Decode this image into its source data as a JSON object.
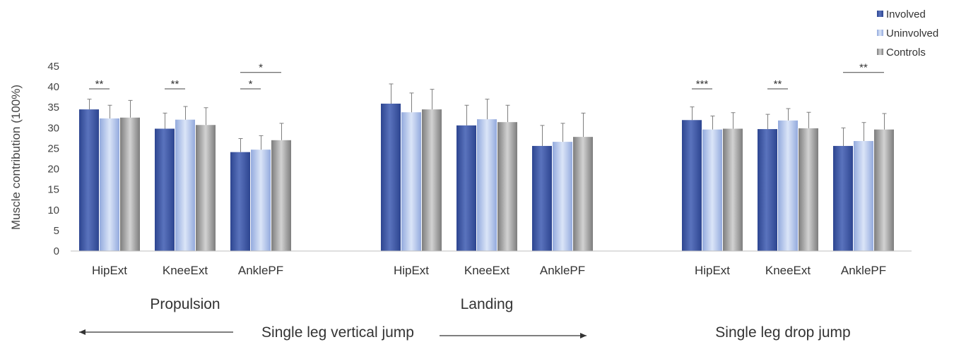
{
  "chart_data": {
    "type": "bar",
    "ylabel": "Muscle contribution (100%)",
    "ylim": [
      0,
      45
    ],
    "yticks": [
      0,
      5,
      10,
      15,
      20,
      25,
      30,
      35,
      40,
      45
    ],
    "grid": false,
    "legend_position": "top-right",
    "series": [
      {
        "name": "Involved",
        "color": "#3c559f"
      },
      {
        "name": "Uninvolved",
        "color": "#a9bde6"
      },
      {
        "name": "Controls",
        "color": "#999999"
      }
    ],
    "groups": [
      {
        "label": "Propulsion",
        "categories": [
          {
            "label": "HipExt",
            "values": [
              34.5,
              32.3,
              32.5
            ],
            "errors": [
              2.5,
              3.2,
              4.2
            ]
          },
          {
            "label": "KneeExt",
            "values": [
              29.8,
              32.0,
              30.7
            ],
            "errors": [
              3.8,
              3.2,
              4.2
            ]
          },
          {
            "label": "AnklePF",
            "values": [
              24.1,
              24.7,
              27.0
            ],
            "errors": [
              3.3,
              3.4,
              4.1
            ]
          }
        ]
      },
      {
        "label": "Landing",
        "categories": [
          {
            "label": "HipExt",
            "values": [
              35.9,
              33.8,
              34.5
            ],
            "errors": [
              4.8,
              4.7,
              4.9
            ]
          },
          {
            "label": "KneeExt",
            "values": [
              30.6,
              32.1,
              31.4
            ],
            "errors": [
              4.9,
              4.9,
              4.1
            ]
          },
          {
            "label": "AnklePF",
            "values": [
              25.6,
              26.6,
              27.8
            ],
            "errors": [
              5.0,
              4.5,
              5.8
            ]
          }
        ]
      },
      {
        "label": "",
        "categories": [
          {
            "label": "HipExt",
            "values": [
              31.9,
              29.6,
              29.8
            ],
            "errors": [
              3.2,
              3.3,
              3.9
            ]
          },
          {
            "label": "KneeExt",
            "values": [
              29.7,
              31.8,
              29.9
            ],
            "errors": [
              3.6,
              2.9,
              3.9
            ]
          },
          {
            "label": "AnklePF",
            "values": [
              25.6,
              26.8,
              29.6
            ],
            "errors": [
              4.4,
              4.5,
              3.9
            ]
          }
        ]
      }
    ],
    "significance": [
      {
        "group": 0,
        "category": 0,
        "from": 0,
        "to": 1,
        "y": 39.5,
        "label": "**"
      },
      {
        "group": 0,
        "category": 1,
        "from": 0,
        "to": 1,
        "y": 39.5,
        "label": "**"
      },
      {
        "group": 0,
        "category": 2,
        "from": 0,
        "to": 2,
        "y": 43.5,
        "label": "*"
      },
      {
        "group": 0,
        "category": 2,
        "from": 0,
        "to": 1,
        "y": 39.5,
        "label": "*"
      },
      {
        "group": 2,
        "category": 0,
        "from": 0,
        "to": 1,
        "y": 39.5,
        "label": "***"
      },
      {
        "group": 2,
        "category": 1,
        "from": 0,
        "to": 1,
        "y": 39.5,
        "label": "**"
      },
      {
        "group": 2,
        "category": 2,
        "from": 0,
        "to": 2,
        "y": 43.5,
        "label": "**"
      }
    ],
    "bottom_labels": [
      {
        "label": "Single leg vertical jump",
        "arrows": true
      },
      {
        "label": "Single leg drop jump",
        "arrows": false
      }
    ]
  }
}
